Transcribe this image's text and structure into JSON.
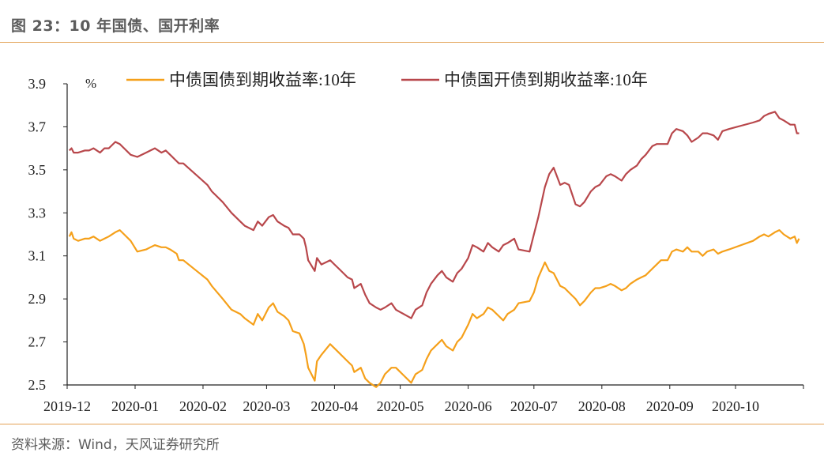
{
  "header": {
    "title": "图 23：10 年国债、国开利率"
  },
  "footer": {
    "source": "资料来源：Wind，天风证券研究所"
  },
  "colors": {
    "series_gov": "#f5a01a",
    "series_cdb": "#b8474b",
    "axis": "#222222",
    "rule": "#e3a256",
    "text": "#5c5c5c"
  },
  "chart_data": {
    "type": "line",
    "title": "",
    "xlabel": "",
    "ylabel": "",
    "unit_label": "%",
    "ylim": [
      2.5,
      3.9
    ],
    "yticks": [
      "3.9",
      "3.7",
      "3.5",
      "3.3",
      "3.1",
      "2.9",
      "2.7",
      "2.5"
    ],
    "xticks": [
      "2019-12",
      "2020-01",
      "2020-02",
      "2020-03",
      "2020-04",
      "2020-05",
      "2020-06",
      "2020-07",
      "2020-08",
      "2020-09",
      "2020-10"
    ],
    "grid": false,
    "legend_position": "top",
    "series": [
      {
        "name": "中债国债到期收益率:10年",
        "color": "#f5a01a",
        "points": [
          [
            "2019-12-02",
            3.19
          ],
          [
            "2019-12-03",
            3.21
          ],
          [
            "2019-12-04",
            3.18
          ],
          [
            "2019-12-06",
            3.17
          ],
          [
            "2019-12-09",
            3.18
          ],
          [
            "2019-12-11",
            3.18
          ],
          [
            "2019-12-13",
            3.19
          ],
          [
            "2019-12-16",
            3.17
          ],
          [
            "2019-12-18",
            3.18
          ],
          [
            "2019-12-20",
            3.19
          ],
          [
            "2019-12-23",
            3.21
          ],
          [
            "2019-12-25",
            3.22
          ],
          [
            "2019-12-27",
            3.2
          ],
          [
            "2019-12-30",
            3.17
          ],
          [
            "2020-01-02",
            3.12
          ],
          [
            "2020-01-06",
            3.13
          ],
          [
            "2020-01-08",
            3.14
          ],
          [
            "2020-01-10",
            3.15
          ],
          [
            "2020-01-13",
            3.14
          ],
          [
            "2020-01-15",
            3.14
          ],
          [
            "2020-01-17",
            3.13
          ],
          [
            "2020-01-20",
            3.11
          ],
          [
            "2020-01-21",
            3.08
          ],
          [
            "2020-01-23",
            3.08
          ],
          [
            "2020-02-03",
            2.99
          ],
          [
            "2020-02-05",
            2.96
          ],
          [
            "2020-02-10",
            2.9
          ],
          [
            "2020-02-14",
            2.85
          ],
          [
            "2020-02-18",
            2.83
          ],
          [
            "2020-02-20",
            2.81
          ],
          [
            "2020-02-24",
            2.78
          ],
          [
            "2020-02-26",
            2.83
          ],
          [
            "2020-02-28",
            2.8
          ],
          [
            "2020-03-02",
            2.86
          ],
          [
            "2020-03-04",
            2.88
          ],
          [
            "2020-03-06",
            2.84
          ],
          [
            "2020-03-09",
            2.82
          ],
          [
            "2020-03-11",
            2.8
          ],
          [
            "2020-03-13",
            2.75
          ],
          [
            "2020-03-16",
            2.74
          ],
          [
            "2020-03-18",
            2.69
          ],
          [
            "2020-03-19",
            2.64
          ],
          [
            "2020-03-20",
            2.58
          ],
          [
            "2020-03-23",
            2.52
          ],
          [
            "2020-03-24",
            2.61
          ],
          [
            "2020-03-26",
            2.64
          ],
          [
            "2020-03-30",
            2.69
          ],
          [
            "2020-04-01",
            2.67
          ],
          [
            "2020-04-03",
            2.65
          ],
          [
            "2020-04-07",
            2.61
          ],
          [
            "2020-04-09",
            2.59
          ],
          [
            "2020-04-10",
            2.56
          ],
          [
            "2020-04-13",
            2.58
          ],
          [
            "2020-04-15",
            2.53
          ],
          [
            "2020-04-17",
            2.51
          ],
          [
            "2020-04-20",
            2.49
          ],
          [
            "2020-04-22",
            2.51
          ],
          [
            "2020-04-24",
            2.55
          ],
          [
            "2020-04-27",
            2.58
          ],
          [
            "2020-04-29",
            2.58
          ],
          [
            "2020-05-06",
            2.51
          ],
          [
            "2020-05-08",
            2.55
          ],
          [
            "2020-05-11",
            2.57
          ],
          [
            "2020-05-13",
            2.62
          ],
          [
            "2020-05-15",
            2.66
          ],
          [
            "2020-05-18",
            2.69
          ],
          [
            "2020-05-20",
            2.71
          ],
          [
            "2020-05-22",
            2.68
          ],
          [
            "2020-05-25",
            2.66
          ],
          [
            "2020-05-27",
            2.7
          ],
          [
            "2020-05-29",
            2.72
          ],
          [
            "2020-06-01",
            2.78
          ],
          [
            "2020-06-03",
            2.83
          ],
          [
            "2020-06-05",
            2.81
          ],
          [
            "2020-06-08",
            2.83
          ],
          [
            "2020-06-10",
            2.86
          ],
          [
            "2020-06-12",
            2.85
          ],
          [
            "2020-06-15",
            2.82
          ],
          [
            "2020-06-17",
            2.8
          ],
          [
            "2020-06-19",
            2.83
          ],
          [
            "2020-06-22",
            2.85
          ],
          [
            "2020-06-24",
            2.88
          ],
          [
            "2020-06-29",
            2.89
          ],
          [
            "2020-07-01",
            2.93
          ],
          [
            "2020-07-03",
            3.0
          ],
          [
            "2020-07-06",
            3.07
          ],
          [
            "2020-07-08",
            3.03
          ],
          [
            "2020-07-10",
            3.02
          ],
          [
            "2020-07-13",
            2.96
          ],
          [
            "2020-07-15",
            2.95
          ],
          [
            "2020-07-17",
            2.93
          ],
          [
            "2020-07-20",
            2.9
          ],
          [
            "2020-07-22",
            2.87
          ],
          [
            "2020-07-24",
            2.89
          ],
          [
            "2020-07-27",
            2.93
          ],
          [
            "2020-07-29",
            2.95
          ],
          [
            "2020-07-31",
            2.95
          ],
          [
            "2020-08-03",
            2.96
          ],
          [
            "2020-08-05",
            2.97
          ],
          [
            "2020-08-07",
            2.96
          ],
          [
            "2020-08-10",
            2.94
          ],
          [
            "2020-08-12",
            2.95
          ],
          [
            "2020-08-14",
            2.97
          ],
          [
            "2020-08-17",
            2.99
          ],
          [
            "2020-08-19",
            3.0
          ],
          [
            "2020-08-21",
            3.01
          ],
          [
            "2020-08-24",
            3.04
          ],
          [
            "2020-08-26",
            3.06
          ],
          [
            "2020-08-28",
            3.08
          ],
          [
            "2020-08-31",
            3.08
          ],
          [
            "2020-09-02",
            3.12
          ],
          [
            "2020-09-04",
            3.13
          ],
          [
            "2020-09-07",
            3.12
          ],
          [
            "2020-09-09",
            3.14
          ],
          [
            "2020-09-11",
            3.12
          ],
          [
            "2020-09-14",
            3.12
          ],
          [
            "2020-09-16",
            3.1
          ],
          [
            "2020-09-18",
            3.12
          ],
          [
            "2020-09-21",
            3.13
          ],
          [
            "2020-09-23",
            3.11
          ],
          [
            "2020-09-25",
            3.12
          ],
          [
            "2020-09-28",
            3.13
          ],
          [
            "2020-10-09",
            3.17
          ],
          [
            "2020-10-12",
            3.19
          ],
          [
            "2020-10-14",
            3.2
          ],
          [
            "2020-10-16",
            3.19
          ],
          [
            "2020-10-19",
            3.21
          ],
          [
            "2020-10-21",
            3.22
          ],
          [
            "2020-10-23",
            3.2
          ],
          [
            "2020-10-26",
            3.18
          ],
          [
            "2020-10-28",
            3.19
          ],
          [
            "2020-10-29",
            3.16
          ],
          [
            "2020-10-30",
            3.18
          ]
        ]
      },
      {
        "name": "中债国开债到期收益率:10年",
        "color": "#b8474b",
        "points": [
          [
            "2019-12-02",
            3.59
          ],
          [
            "2019-12-03",
            3.6
          ],
          [
            "2019-12-04",
            3.58
          ],
          [
            "2019-12-06",
            3.58
          ],
          [
            "2019-12-09",
            3.59
          ],
          [
            "2019-12-11",
            3.59
          ],
          [
            "2019-12-13",
            3.6
          ],
          [
            "2019-12-16",
            3.58
          ],
          [
            "2019-12-18",
            3.6
          ],
          [
            "2019-12-20",
            3.6
          ],
          [
            "2019-12-23",
            3.63
          ],
          [
            "2019-12-25",
            3.62
          ],
          [
            "2019-12-27",
            3.6
          ],
          [
            "2019-12-30",
            3.57
          ],
          [
            "2020-01-02",
            3.56
          ],
          [
            "2020-01-06",
            3.58
          ],
          [
            "2020-01-08",
            3.59
          ],
          [
            "2020-01-10",
            3.6
          ],
          [
            "2020-01-13",
            3.58
          ],
          [
            "2020-01-15",
            3.59
          ],
          [
            "2020-01-17",
            3.57
          ],
          [
            "2020-01-20",
            3.54
          ],
          [
            "2020-01-21",
            3.53
          ],
          [
            "2020-01-23",
            3.53
          ],
          [
            "2020-02-03",
            3.43
          ],
          [
            "2020-02-05",
            3.4
          ],
          [
            "2020-02-10",
            3.35
          ],
          [
            "2020-02-14",
            3.3
          ],
          [
            "2020-02-18",
            3.26
          ],
          [
            "2020-02-20",
            3.24
          ],
          [
            "2020-02-24",
            3.22
          ],
          [
            "2020-02-26",
            3.26
          ],
          [
            "2020-02-28",
            3.24
          ],
          [
            "2020-03-02",
            3.28
          ],
          [
            "2020-03-04",
            3.29
          ],
          [
            "2020-03-06",
            3.26
          ],
          [
            "2020-03-09",
            3.24
          ],
          [
            "2020-03-11",
            3.23
          ],
          [
            "2020-03-13",
            3.2
          ],
          [
            "2020-03-16",
            3.2
          ],
          [
            "2020-03-18",
            3.18
          ],
          [
            "2020-03-19",
            3.14
          ],
          [
            "2020-03-20",
            3.08
          ],
          [
            "2020-03-23",
            3.03
          ],
          [
            "2020-03-24",
            3.09
          ],
          [
            "2020-03-26",
            3.06
          ],
          [
            "2020-03-30",
            3.08
          ],
          [
            "2020-04-01",
            3.06
          ],
          [
            "2020-04-03",
            3.04
          ],
          [
            "2020-04-07",
            3.0
          ],
          [
            "2020-04-09",
            2.99
          ],
          [
            "2020-04-10",
            2.95
          ],
          [
            "2020-04-13",
            2.97
          ],
          [
            "2020-04-15",
            2.92
          ],
          [
            "2020-04-17",
            2.88
          ],
          [
            "2020-04-20",
            2.86
          ],
          [
            "2020-04-22",
            2.85
          ],
          [
            "2020-04-24",
            2.86
          ],
          [
            "2020-04-27",
            2.88
          ],
          [
            "2020-04-29",
            2.85
          ],
          [
            "2020-05-06",
            2.81
          ],
          [
            "2020-05-08",
            2.85
          ],
          [
            "2020-05-11",
            2.87
          ],
          [
            "2020-05-13",
            2.93
          ],
          [
            "2020-05-15",
            2.97
          ],
          [
            "2020-05-18",
            3.01
          ],
          [
            "2020-05-20",
            3.03
          ],
          [
            "2020-05-22",
            3.0
          ],
          [
            "2020-05-25",
            2.98
          ],
          [
            "2020-05-27",
            3.02
          ],
          [
            "2020-05-29",
            3.04
          ],
          [
            "2020-06-01",
            3.09
          ],
          [
            "2020-06-03",
            3.15
          ],
          [
            "2020-06-05",
            3.14
          ],
          [
            "2020-06-08",
            3.12
          ],
          [
            "2020-06-10",
            3.16
          ],
          [
            "2020-06-12",
            3.14
          ],
          [
            "2020-06-15",
            3.12
          ],
          [
            "2020-06-17",
            3.15
          ],
          [
            "2020-06-19",
            3.16
          ],
          [
            "2020-06-22",
            3.18
          ],
          [
            "2020-06-24",
            3.13
          ],
          [
            "2020-06-29",
            3.12
          ],
          [
            "2020-07-01",
            3.2
          ],
          [
            "2020-07-03",
            3.28
          ],
          [
            "2020-07-06",
            3.42
          ],
          [
            "2020-07-08",
            3.48
          ],
          [
            "2020-07-10",
            3.51
          ],
          [
            "2020-07-13",
            3.43
          ],
          [
            "2020-07-15",
            3.44
          ],
          [
            "2020-07-17",
            3.43
          ],
          [
            "2020-07-20",
            3.34
          ],
          [
            "2020-07-22",
            3.33
          ],
          [
            "2020-07-24",
            3.35
          ],
          [
            "2020-07-27",
            3.4
          ],
          [
            "2020-07-29",
            3.42
          ],
          [
            "2020-07-31",
            3.43
          ],
          [
            "2020-08-03",
            3.47
          ],
          [
            "2020-08-05",
            3.48
          ],
          [
            "2020-08-07",
            3.47
          ],
          [
            "2020-08-10",
            3.45
          ],
          [
            "2020-08-12",
            3.48
          ],
          [
            "2020-08-14",
            3.5
          ],
          [
            "2020-08-17",
            3.52
          ],
          [
            "2020-08-19",
            3.55
          ],
          [
            "2020-08-21",
            3.57
          ],
          [
            "2020-08-24",
            3.61
          ],
          [
            "2020-08-26",
            3.62
          ],
          [
            "2020-08-28",
            3.62
          ],
          [
            "2020-08-31",
            3.62
          ],
          [
            "2020-09-02",
            3.67
          ],
          [
            "2020-09-04",
            3.69
          ],
          [
            "2020-09-07",
            3.68
          ],
          [
            "2020-09-09",
            3.66
          ],
          [
            "2020-09-11",
            3.63
          ],
          [
            "2020-09-14",
            3.65
          ],
          [
            "2020-09-16",
            3.67
          ],
          [
            "2020-09-18",
            3.67
          ],
          [
            "2020-09-21",
            3.66
          ],
          [
            "2020-09-23",
            3.64
          ],
          [
            "2020-09-25",
            3.68
          ],
          [
            "2020-09-28",
            3.69
          ],
          [
            "2020-10-09",
            3.72
          ],
          [
            "2020-10-12",
            3.73
          ],
          [
            "2020-10-14",
            3.75
          ],
          [
            "2020-10-16",
            3.76
          ],
          [
            "2020-10-19",
            3.77
          ],
          [
            "2020-10-21",
            3.74
          ],
          [
            "2020-10-23",
            3.73
          ],
          [
            "2020-10-26",
            3.71
          ],
          [
            "2020-10-28",
            3.71
          ],
          [
            "2020-10-29",
            3.67
          ],
          [
            "2020-10-30",
            3.67
          ]
        ]
      }
    ]
  }
}
